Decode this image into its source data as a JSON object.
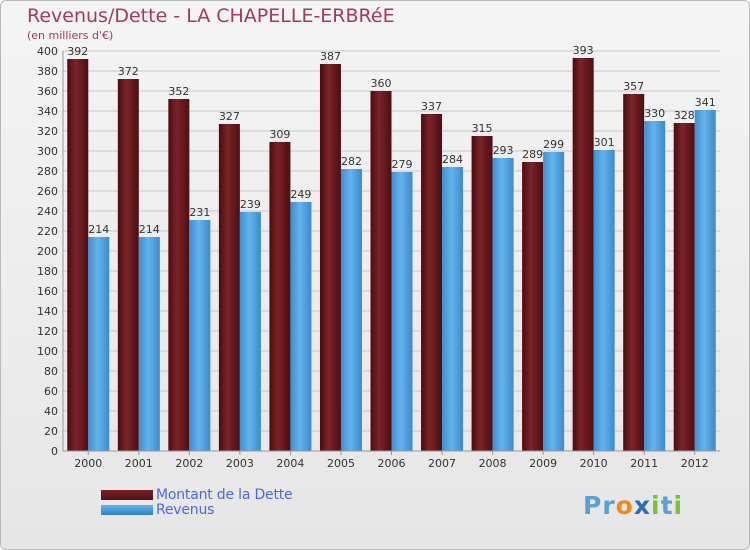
{
  "title": "Revenus/Dette - LA CHAPELLE-ERBRéE",
  "subtitle": "(en milliers d'€)",
  "legend": {
    "debt_label": "Montant de la Dette",
    "revenue_label": "Revenus"
  },
  "logo": {
    "letters": [
      "P",
      "r",
      "o",
      "x",
      "i",
      "t",
      "i"
    ],
    "colors": [
      "#5aa0d6",
      "#5aa0d6",
      "#f08a1c",
      "#2a6fb5",
      "#7cbf3a",
      "#5aa0d6",
      "#7cbf3a"
    ]
  },
  "colors": {
    "debt": "#6e1a1e",
    "debt_dark": "#520f12",
    "revenue": "#59a8e4",
    "revenue_dark": "#2f82c8",
    "title": "#a33a5a",
    "legend_text": "#4e68d9"
  },
  "chart_data": {
    "type": "bar",
    "categories": [
      "2000",
      "2001",
      "2002",
      "2003",
      "2004",
      "2005",
      "2006",
      "2007",
      "2008",
      "2009",
      "2010",
      "2011",
      "2012"
    ],
    "series": [
      {
        "name": "Montant de la Dette",
        "values": [
          392,
          372,
          352,
          327,
          309,
          387,
          360,
          337,
          315,
          289,
          393,
          357,
          328
        ]
      },
      {
        "name": "Revenus",
        "values": [
          214,
          214,
          231,
          239,
          249,
          282,
          279,
          284,
          293,
          299,
          301,
          330,
          341
        ]
      }
    ],
    "ylim": [
      0,
      400
    ],
    "ytick_step": 20,
    "grid": true
  }
}
